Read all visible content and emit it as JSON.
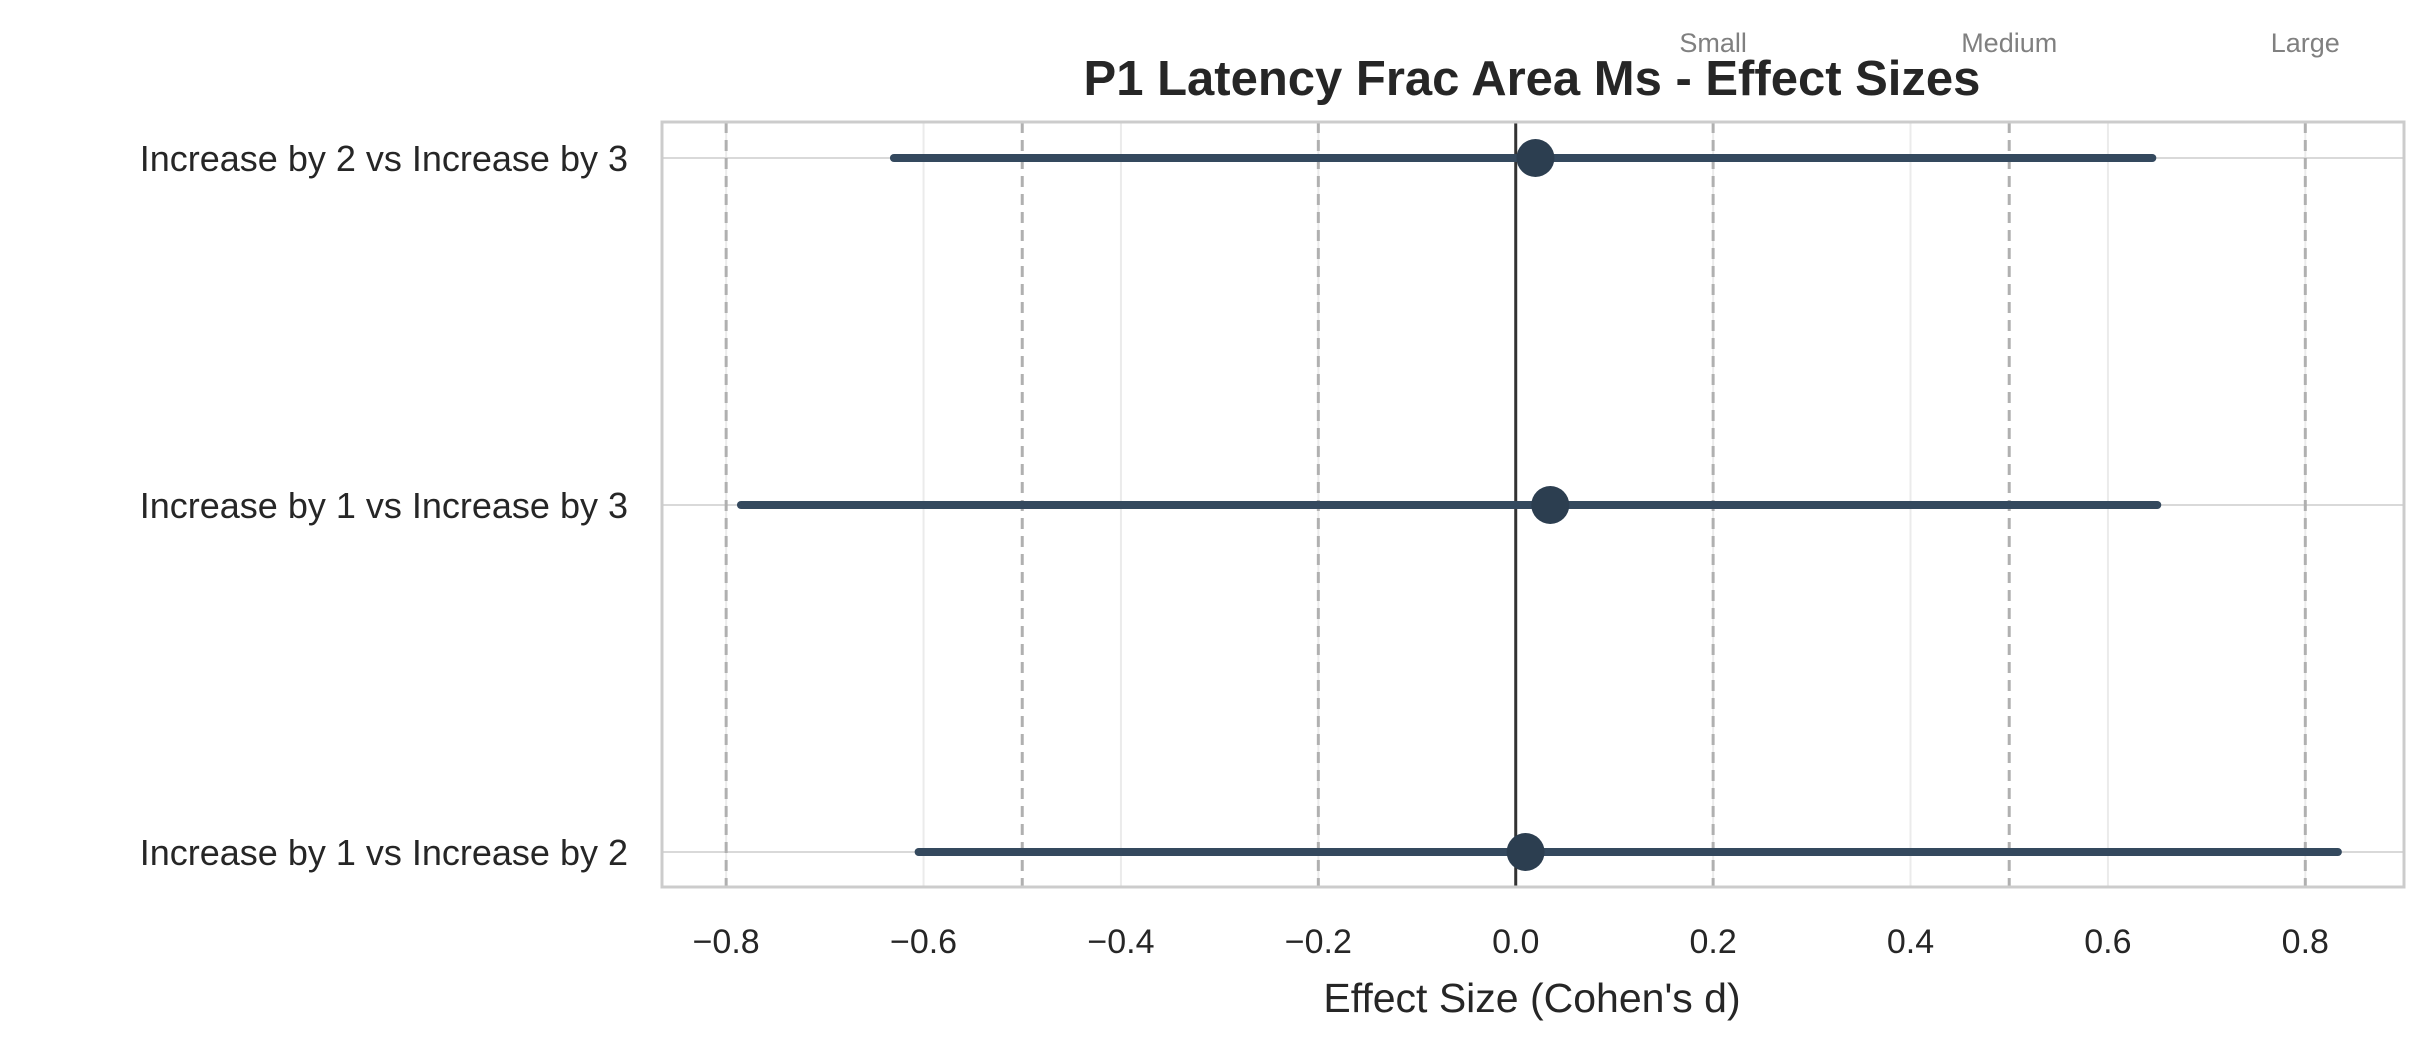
{
  "chart_data": {
    "type": "forest",
    "title": "P1 Latency Frac Area Ms - Effect Sizes",
    "xlabel": "Effect Size (Cohen's d)",
    "ylabel": "",
    "xlim": [
      -0.865,
      0.9
    ],
    "xticks": [
      -0.8,
      -0.6,
      -0.4,
      -0.2,
      0.0,
      0.2,
      0.4,
      0.6,
      0.8
    ],
    "xtick_labels": [
      "−0.8",
      "−0.6",
      "−0.4",
      "−0.2",
      "0.0",
      "0.2",
      "0.4",
      "0.6",
      "0.8"
    ],
    "grid": true,
    "zero_line": 0,
    "reference_lines": [
      -0.8,
      -0.5,
      -0.2,
      0.2,
      0.5,
      0.8
    ],
    "reference_labels": [
      {
        "x": 0.2,
        "label": "Small"
      },
      {
        "x": 0.5,
        "label": "Medium"
      },
      {
        "x": 0.8,
        "label": "Large"
      }
    ],
    "comparisons": [
      {
        "label": "Increase by 2 vs Increase by 3",
        "effect": 0.02,
        "ci_low": -0.63,
        "ci_high": 0.645
      },
      {
        "label": "Increase by 1 vs Increase by 3",
        "effect": 0.035,
        "ci_low": -0.785,
        "ci_high": 0.65
      },
      {
        "label": "Increase by 1 vs Increase by 2",
        "effect": 0.01,
        "ci_low": -0.605,
        "ci_high": 0.833
      }
    ],
    "colors": {
      "ci_line": "#34495e",
      "point": "#2c3e50",
      "zero_line": "#333333",
      "ref_line": "#b0b0b0",
      "grid": "#ebebeb",
      "spine": "#cccccc"
    }
  }
}
